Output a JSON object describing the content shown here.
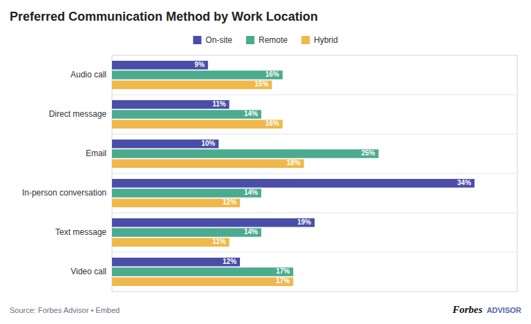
{
  "chart_data": {
    "type": "bar",
    "orientation": "horizontal",
    "title": "Preferred Communication Method by Work Location",
    "categories": [
      "Audio call",
      "Direct message",
      "Email",
      "In-person conversation",
      "Text message",
      "Video call"
    ],
    "series": [
      {
        "name": "On-site",
        "color": "#4a4ea8",
        "values": [
          9,
          11,
          10,
          34,
          19,
          12
        ],
        "value_labels": [
          "9%",
          "11%",
          "10%",
          "34%",
          "19%",
          "12%"
        ]
      },
      {
        "name": "Remote",
        "color": "#4aab8e",
        "values": [
          16,
          14,
          25,
          14,
          14,
          17
        ],
        "value_labels": [
          "16%",
          "14%",
          "25%",
          "14%",
          "14%",
          "17%"
        ]
      },
      {
        "name": "Hybrid",
        "color": "#f0b84b",
        "values": [
          15,
          16,
          18,
          12,
          11,
          17
        ],
        "value_labels": [
          "15%",
          "16%",
          "18%",
          "12%",
          "11%",
          "17%"
        ]
      }
    ],
    "xlim": [
      0,
      38
    ],
    "data_labels": true,
    "tick_labels": "y",
    "grid": false,
    "legend": "top",
    "annotations": [
      "Source: Forbes Advisor • Embed",
      "Forbes",
      "ADVISOR"
    ]
  }
}
